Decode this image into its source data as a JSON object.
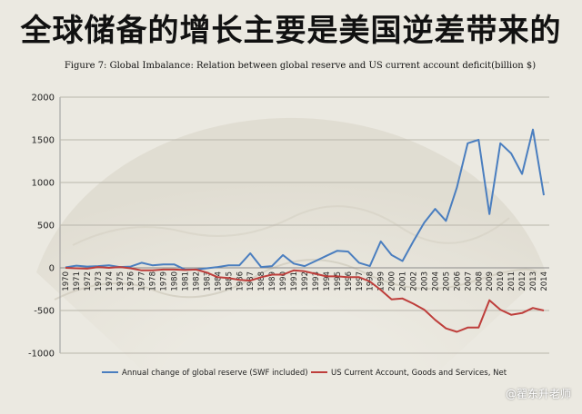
{
  "slide": {
    "title": "全球储备的增长主要是美国逆差带来的",
    "watermark": "@翟东升老师"
  },
  "chart_data": {
    "type": "line",
    "title": "Figure 7: Global Imbalance: Relation between global reserve and US current account deficit(billion $)",
    "xlabel": "",
    "ylabel": "",
    "ylim": [
      -1000,
      2000
    ],
    "yticks": [
      -1000,
      -500,
      0,
      500,
      1000,
      1500,
      2000
    ],
    "grid": true,
    "legend_position": "bottom",
    "x": [
      "1970",
      "1971",
      "1972",
      "1973",
      "1974",
      "1975",
      "1976",
      "1977",
      "1978",
      "1979",
      "1980",
      "1981",
      "1982",
      "1983",
      "1984",
      "1985",
      "1986",
      "1987",
      "1988",
      "1989",
      "1990",
      "1991",
      "1992",
      "1993",
      "1994",
      "1995",
      "1996",
      "1997",
      "1998",
      "1999",
      "2000",
      "2001",
      "2002",
      "2003",
      "2004",
      "2005",
      "2006",
      "2007",
      "2008",
      "2009",
      "2010",
      "2011",
      "2012",
      "2013",
      "2014"
    ],
    "series": [
      {
        "name": "Annual change of global reserve (SWF included)",
        "color": "#4a7ebf",
        "values": [
          5,
          25,
          15,
          20,
          30,
          10,
          15,
          60,
          30,
          40,
          40,
          -20,
          -20,
          -5,
          10,
          30,
          30,
          170,
          10,
          20,
          150,
          50,
          20,
          80,
          140,
          200,
          190,
          60,
          20,
          310,
          150,
          80,
          310,
          530,
          690,
          550,
          940,
          1460,
          1500,
          630,
          1460,
          1340,
          1100,
          1620,
          850
        ]
      },
      {
        "name": "US Current Account, Goods and Services, Net",
        "color": "#be3e3b",
        "values": [
          0,
          -5,
          -10,
          10,
          0,
          10,
          -5,
          -30,
          -30,
          -20,
          -20,
          -25,
          -20,
          -55,
          -110,
          -120,
          -140,
          -150,
          -110,
          -80,
          -80,
          -30,
          -40,
          -70,
          -100,
          -100,
          -110,
          -110,
          -160,
          -260,
          -370,
          -360,
          -420,
          -490,
          -610,
          -710,
          -750,
          -700,
          -700,
          -380,
          -490,
          -550,
          -530,
          -470,
          -500
        ]
      }
    ]
  }
}
